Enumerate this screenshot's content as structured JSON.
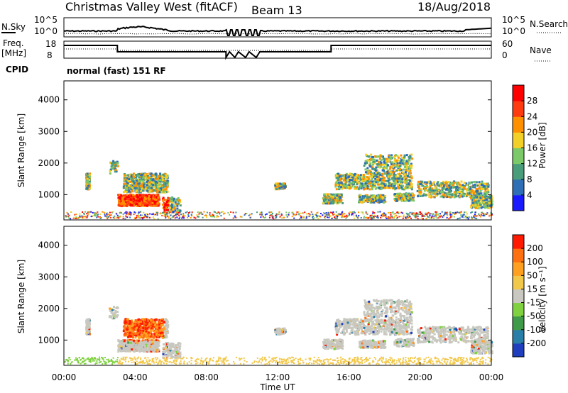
{
  "header": {
    "radar": "Christmas Valley West (fitACF)",
    "beam": "Beam 13",
    "date": "18/Aug/2018"
  },
  "param_panels": {
    "nsky_label": "N.Sky",
    "nsky_ticks": [
      "10^5",
      "10^0"
    ],
    "nsearch_label": "N.Search",
    "nsearch_ticks": [
      "10^5",
      "10^0"
    ],
    "freq_label": "Freq.",
    "freq_unit": "[MHz]",
    "freq_ticks": [
      "18",
      "8"
    ],
    "nave_label": "Nave",
    "nave_ticks": [
      "60",
      "0"
    ],
    "cpid_label": "CPID",
    "cpid_value": "normal (fast) 151 RF"
  },
  "chart_data": [
    {
      "type": "heatmap",
      "name": "power",
      "ylabel": "Slant Range [km]",
      "yticks": [
        "1000",
        "2000",
        "3000",
        "4000"
      ],
      "ylim": [
        200,
        4600
      ],
      "colorbar_label": "Power [dB]",
      "colorbar_ticks": [
        "4",
        "8",
        "12",
        "16",
        "20",
        "24",
        "28"
      ],
      "colorbar_colors": [
        "#1a1aff",
        "#2f6fb6",
        "#4a9d7a",
        "#7cc96a",
        "#f2d027",
        "#ff9000",
        "#ff3c10",
        "#ff0000"
      ]
    },
    {
      "type": "heatmap",
      "name": "velocity",
      "ylabel": "Slant Range [km]",
      "yticks": [
        "1000",
        "2000",
        "3000",
        "4000"
      ],
      "ylim": [
        200,
        4600
      ],
      "colorbar_label": "Velocity [m s⁻¹]",
      "colorbar_ticks": [
        "200",
        "100",
        "50",
        "15",
        "-15",
        "-50",
        "-100",
        "-200"
      ],
      "colorbar_colors": [
        "#1f3fbf",
        "#2a7fa8",
        "#3f9a4a",
        "#7fd13f",
        "#c8c8c0",
        "#f2c84a",
        "#ffa020",
        "#ff7010",
        "#ff1a00"
      ]
    }
  ],
  "time_axis": {
    "ticks": [
      "00:00",
      "04:00",
      "08:00",
      "12:00",
      "16:00",
      "20:00",
      "00:00"
    ],
    "label": "Time UT"
  }
}
